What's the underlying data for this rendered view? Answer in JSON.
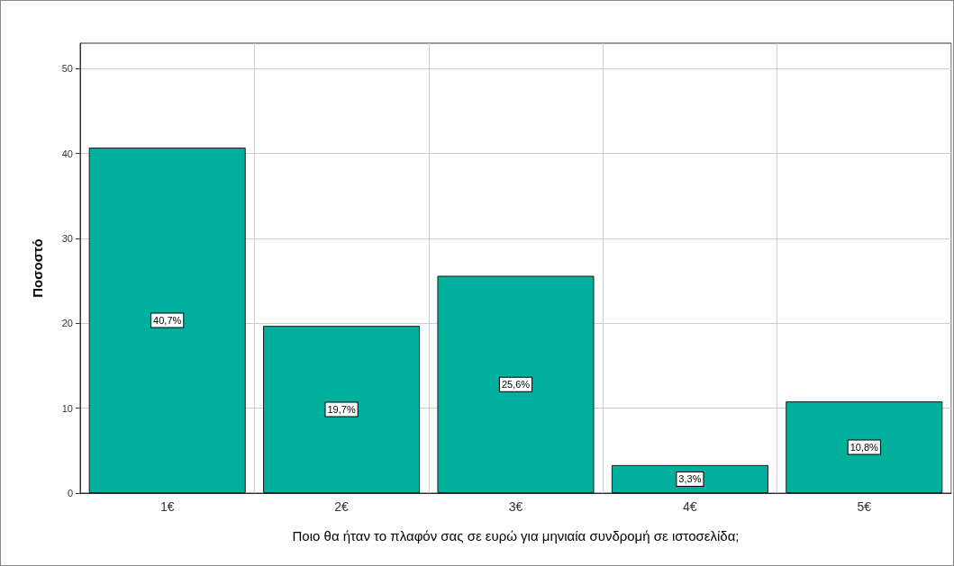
{
  "chart_data": {
    "type": "bar",
    "xlabel": "Ποιο θα ήταν το πλαφόν σας σε ευρώ για μηνιαία συνδρομή σε ιστοσελίδα;",
    "ylabel": "Ποσοστό",
    "categories": [
      "1€",
      "2€",
      "3€",
      "4€",
      "5€"
    ],
    "values": [
      40.7,
      19.7,
      25.6,
      3.3,
      10.8
    ],
    "value_labels": [
      "40,7%",
      "19,7%",
      "25,6%",
      "3,3%",
      "10,8%"
    ],
    "color": "#00b09c",
    "ylim": [
      0,
      53
    ],
    "yticks": [
      0,
      10,
      20,
      30,
      40,
      50
    ],
    "grid": true
  }
}
